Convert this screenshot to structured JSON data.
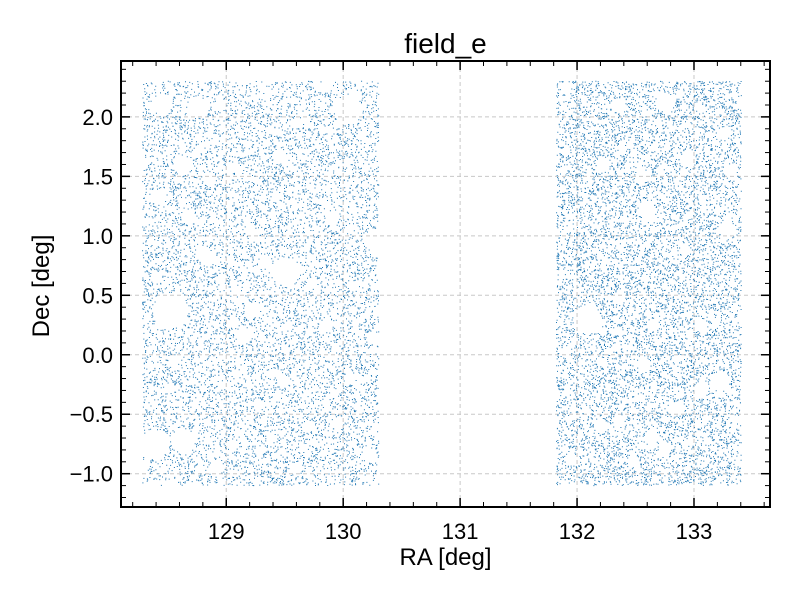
{
  "chart_data": {
    "type": "scatter",
    "title": "field_e",
    "xlabel": "RA [deg]",
    "ylabel": "Dec [deg]",
    "xlim": [
      128.1,
      133.65
    ],
    "ylim": [
      -1.28,
      2.47
    ],
    "xticks": [
      129,
      130,
      131,
      132,
      133
    ],
    "xtick_labels": [
      "129",
      "130",
      "131",
      "132",
      "133"
    ],
    "yticks": [
      -1.0,
      -0.5,
      0.0,
      0.5,
      1.0,
      1.5,
      2.0
    ],
    "ytick_labels": [
      "−1.0",
      "−0.5",
      "0.0",
      "0.5",
      "1.0",
      "1.5",
      "2.0"
    ],
    "grid": true,
    "point_color": "#1f77b4",
    "series": [
      {
        "regions": [
          {
            "ra": [
              128.28,
              130.3
            ],
            "dec": [
              -1.1,
              2.3
            ]
          },
          {
            "ra": [
              131.82,
              133.4
            ],
            "dec": [
              -1.1,
              2.3
            ]
          }
        ],
        "masked_holes": [
          [
            128.52,
            0.37,
            0.15
          ],
          [
            128.38,
            -0.75,
            0.12
          ],
          [
            128.63,
            -0.73,
            0.1
          ],
          [
            128.45,
            2.1,
            0.08
          ],
          [
            128.75,
            2.08,
            0.09
          ],
          [
            128.62,
            1.6,
            0.07
          ],
          [
            128.85,
            1.48,
            0.06
          ],
          [
            128.42,
            1.33,
            0.06
          ],
          [
            128.68,
            1.15,
            0.06
          ],
          [
            128.8,
            0.85,
            0.07
          ],
          [
            129.15,
            0.16,
            0.07
          ],
          [
            129.23,
            0.38,
            0.06
          ],
          [
            129.04,
            1.57,
            0.05
          ],
          [
            129.5,
            0.7,
            0.12
          ],
          [
            129.45,
            1.67,
            0.06
          ],
          [
            129.67,
            1.98,
            0.04
          ],
          [
            129.73,
            0.6,
            0.05
          ],
          [
            129.9,
            1.15,
            0.06
          ],
          [
            130.04,
            2.06,
            0.12
          ],
          [
            130.28,
            0.96,
            0.1
          ],
          [
            129.22,
            1.02,
            0.05
          ],
          [
            129.32,
            0.78,
            0.05
          ],
          [
            130.05,
            -0.2,
            0.05
          ],
          [
            129.95,
            -0.58,
            0.05
          ],
          [
            129.7,
            -0.6,
            0.05
          ],
          [
            129.48,
            -0.22,
            0.05
          ],
          [
            129.05,
            -0.76,
            0.05
          ],
          [
            128.55,
            -0.05,
            0.05
          ],
          [
            128.4,
            0.65,
            0.05
          ],
          [
            129.85,
            0.25,
            0.05
          ],
          [
            128.85,
            0.8,
            0.05
          ],
          [
            129.6,
            -0.95,
            0.05
          ],
          [
            128.9,
            -0.96,
            0.06
          ],
          [
            128.95,
            2.1,
            0.05
          ],
          [
            129.85,
            2.25,
            0.05
          ],
          [
            130.22,
            -0.85,
            0.06
          ],
          [
            132.35,
            2.1,
            0.06
          ],
          [
            132.75,
            2.12,
            0.08
          ],
          [
            132.22,
            1.6,
            0.06
          ],
          [
            131.9,
            2.25,
            0.05
          ],
          [
            132.55,
            1.5,
            0.06
          ],
          [
            132.95,
            1.65,
            0.06
          ],
          [
            132.92,
            0.88,
            0.05
          ],
          [
            132.08,
            0.3,
            0.12
          ],
          [
            132.35,
            0.48,
            0.05
          ],
          [
            132.65,
            0.25,
            0.05
          ],
          [
            132.6,
            1.2,
            0.07
          ],
          [
            133.28,
            1.05,
            0.07
          ],
          [
            133.3,
            1.55,
            0.05
          ],
          [
            133.2,
            -0.23,
            0.07
          ],
          [
            132.85,
            -0.45,
            0.06
          ],
          [
            132.57,
            -0.1,
            0.05
          ],
          [
            131.9,
            0.02,
            0.05
          ],
          [
            132.2,
            -0.6,
            0.06
          ],
          [
            132.35,
            -0.55,
            0.05
          ],
          [
            132.63,
            -0.7,
            0.06
          ],
          [
            131.95,
            -0.88,
            0.05
          ],
          [
            133.05,
            -0.3,
            0.06
          ],
          [
            133.05,
            0.25,
            0.05
          ],
          [
            132.48,
            -0.9,
            0.05
          ],
          [
            133.25,
            1.85,
            0.05
          ],
          [
            132.75,
            -0.8,
            0.05
          ]
        ]
      }
    ]
  }
}
